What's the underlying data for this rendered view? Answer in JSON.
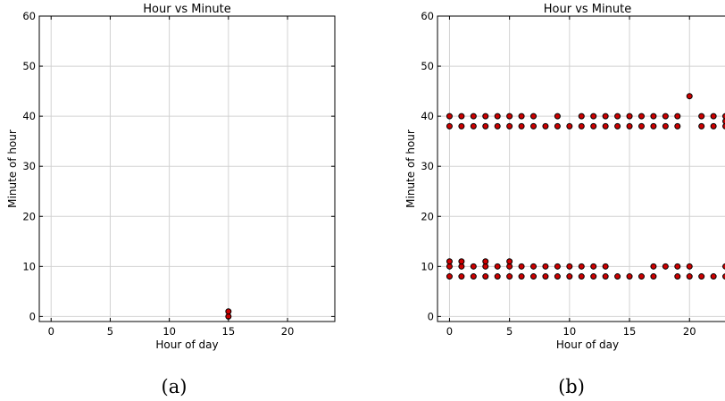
{
  "chart_data": [
    {
      "type": "scatter",
      "title": "Hour vs Minute",
      "xlabel": "Hour of day",
      "ylabel": "Minute of hour",
      "xlim": [
        -1,
        24
      ],
      "ylim": [
        -1,
        60
      ],
      "xticks": [
        0,
        5,
        10,
        15,
        20
      ],
      "yticks": [
        0,
        10,
        20,
        30,
        40,
        50,
        60
      ],
      "grid": true,
      "marker_color": "#cc0000",
      "caption": "(a)",
      "points": [
        [
          15,
          0
        ],
        [
          15,
          1
        ]
      ]
    },
    {
      "type": "scatter",
      "title": "Hour vs Minute",
      "xlabel": "Hour of day",
      "ylabel": "Minute of hour",
      "xlim": [
        -1,
        24
      ],
      "ylim": [
        -1,
        60
      ],
      "xticks": [
        0,
        5,
        10,
        15,
        20
      ],
      "yticks": [
        0,
        10,
        20,
        30,
        40,
        50,
        60
      ],
      "grid": true,
      "marker_color": "#cc0000",
      "caption": "(b)",
      "points": [
        [
          0,
          8
        ],
        [
          0,
          10
        ],
        [
          0,
          11
        ],
        [
          0,
          38
        ],
        [
          0,
          40
        ],
        [
          1,
          8
        ],
        [
          1,
          10
        ],
        [
          1,
          11
        ],
        [
          1,
          38
        ],
        [
          1,
          40
        ],
        [
          2,
          8
        ],
        [
          2,
          10
        ],
        [
          2,
          38
        ],
        [
          2,
          40
        ],
        [
          3,
          8
        ],
        [
          3,
          10
        ],
        [
          3,
          11
        ],
        [
          3,
          38
        ],
        [
          3,
          40
        ],
        [
          4,
          8
        ],
        [
          4,
          10
        ],
        [
          4,
          38
        ],
        [
          4,
          40
        ],
        [
          5,
          8
        ],
        [
          5,
          10
        ],
        [
          5,
          11
        ],
        [
          5,
          38
        ],
        [
          5,
          40
        ],
        [
          6,
          8
        ],
        [
          6,
          10
        ],
        [
          6,
          38
        ],
        [
          6,
          40
        ],
        [
          7,
          8
        ],
        [
          7,
          10
        ],
        [
          7,
          38
        ],
        [
          7,
          40
        ],
        [
          8,
          8
        ],
        [
          8,
          10
        ],
        [
          8,
          38
        ],
        [
          9,
          8
        ],
        [
          9,
          10
        ],
        [
          9,
          38
        ],
        [
          9,
          40
        ],
        [
          10,
          8
        ],
        [
          10,
          10
        ],
        [
          10,
          38
        ],
        [
          11,
          8
        ],
        [
          11,
          10
        ],
        [
          11,
          38
        ],
        [
          11,
          40
        ],
        [
          12,
          8
        ],
        [
          12,
          10
        ],
        [
          12,
          38
        ],
        [
          12,
          40
        ],
        [
          13,
          8
        ],
        [
          13,
          10
        ],
        [
          13,
          38
        ],
        [
          13,
          40
        ],
        [
          14,
          8
        ],
        [
          14,
          38
        ],
        [
          14,
          40
        ],
        [
          15,
          8
        ],
        [
          15,
          38
        ],
        [
          15,
          40
        ],
        [
          16,
          8
        ],
        [
          16,
          38
        ],
        [
          16,
          40
        ],
        [
          17,
          8
        ],
        [
          17,
          10
        ],
        [
          17,
          38
        ],
        [
          17,
          40
        ],
        [
          18,
          10
        ],
        [
          18,
          38
        ],
        [
          18,
          40
        ],
        [
          19,
          8
        ],
        [
          19,
          10
        ],
        [
          19,
          38
        ],
        [
          19,
          40
        ],
        [
          20,
          8
        ],
        [
          20,
          10
        ],
        [
          20,
          44
        ],
        [
          21,
          8
        ],
        [
          21,
          38
        ],
        [
          21,
          40
        ],
        [
          22,
          8
        ],
        [
          22,
          38
        ],
        [
          22,
          40
        ],
        [
          23,
          8
        ],
        [
          23,
          10
        ],
        [
          23,
          38
        ],
        [
          23,
          39
        ],
        [
          23,
          40
        ]
      ]
    }
  ]
}
